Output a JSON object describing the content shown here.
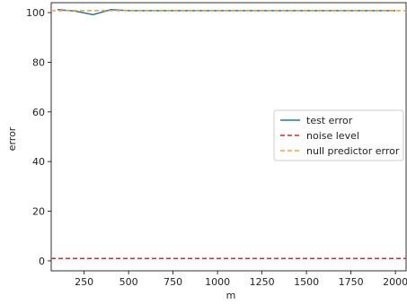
{
  "chart_data": {
    "type": "line",
    "title": "",
    "xlabel": "m",
    "ylabel": "error",
    "xlim": [
      65,
      2060
    ],
    "ylim": [
      -4,
      104
    ],
    "xticks": [
      250,
      500,
      750,
      1000,
      1250,
      1500,
      1750,
      2000
    ],
    "yticks": [
      0,
      20,
      40,
      60,
      80,
      100
    ],
    "grid": false,
    "legend_position": "center-right",
    "series": [
      {
        "name": "test error",
        "style": "solid",
        "color": "#1f77b4",
        "x": [
          100,
          200,
          300,
          400,
          500,
          600,
          700,
          800,
          900,
          1000,
          1100,
          1200,
          1300,
          1400,
          1500,
          1600,
          1700,
          1800,
          1900,
          2000
        ],
        "y": [
          101.2,
          100.6,
          99.2,
          101.2,
          100.8,
          100.8,
          100.8,
          100.8,
          100.8,
          100.8,
          100.8,
          100.8,
          100.8,
          100.8,
          100.8,
          100.8,
          100.8,
          100.8,
          100.8,
          100.8
        ]
      },
      {
        "name": "noise level",
        "style": "dashed",
        "color": "#d62728",
        "x": [
          65,
          2060
        ],
        "y": [
          1,
          1
        ]
      },
      {
        "name": "null predictor error",
        "style": "dashed",
        "color": "#ff9f1a",
        "x": [
          65,
          2060
        ],
        "y": [
          100.8,
          100.8
        ]
      }
    ]
  }
}
